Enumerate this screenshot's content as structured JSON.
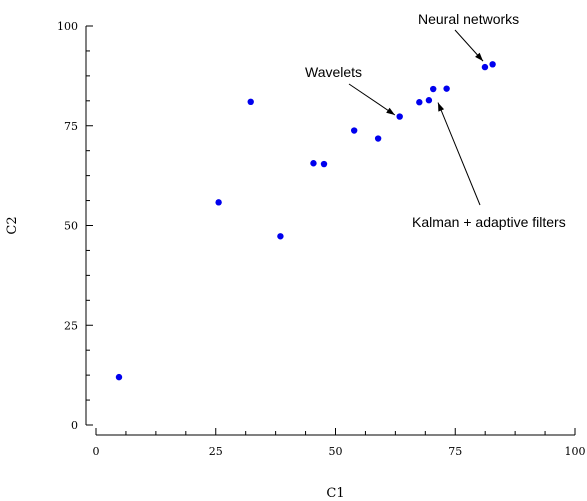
{
  "chart_data": {
    "type": "scatter",
    "xlabel": "C1",
    "ylabel": "C2",
    "xlim": [
      0,
      100
    ],
    "ylim": [
      0,
      100
    ],
    "x_ticks": [
      "0",
      "25",
      "50",
      "75",
      "100"
    ],
    "y_ticks": [
      "0",
      "25",
      "50",
      "75",
      "100"
    ],
    "grid": false,
    "point_color": "#0000ee",
    "points": [
      {
        "x": 4.8,
        "y": 12.0
      },
      {
        "x": 25.6,
        "y": 55.8
      },
      {
        "x": 32.3,
        "y": 81.0
      },
      {
        "x": 38.5,
        "y": 47.3
      },
      {
        "x": 45.4,
        "y": 65.6
      },
      {
        "x": 47.6,
        "y": 65.4
      },
      {
        "x": 53.9,
        "y": 73.8
      },
      {
        "x": 58.9,
        "y": 71.8
      },
      {
        "x": 63.4,
        "y": 77.3
      },
      {
        "x": 67.5,
        "y": 80.9
      },
      {
        "x": 69.5,
        "y": 81.4
      },
      {
        "x": 70.4,
        "y": 84.2
      },
      {
        "x": 73.2,
        "y": 84.3
      },
      {
        "x": 81.2,
        "y": 89.7
      },
      {
        "x": 82.8,
        "y": 90.4
      }
    ],
    "annotations": [
      {
        "text": "Neural networks",
        "target": {
          "x": 80.8,
          "y": 91.2
        },
        "text_anchor": "right"
      },
      {
        "text": "Wavelets",
        "target": {
          "x": 62.4,
          "y": 77.7
        },
        "text_anchor": "left"
      },
      {
        "text": "Kalman + adaptive filters",
        "target": {
          "x": 71.4,
          "y": 80.8
        },
        "text_anchor": "bottom"
      }
    ]
  }
}
